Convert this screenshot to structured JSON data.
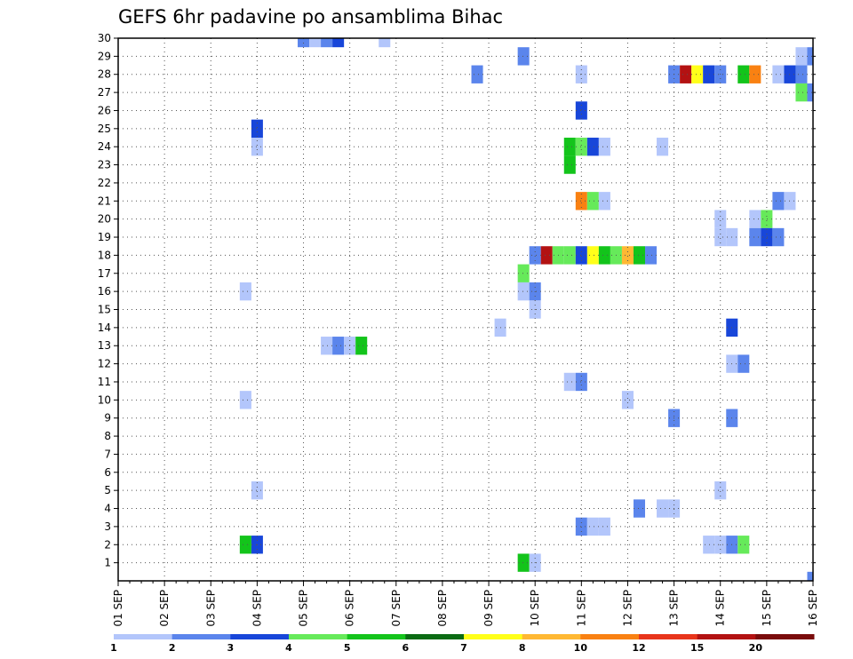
{
  "chart_data": {
    "type": "heatmap",
    "title": "GEFS 6hr padavine po ansamblima Bihac",
    "xlabel": "",
    "ylabel": "",
    "x_tick_labels": [
      "01 SEP",
      "02 SEP",
      "03 SEP",
      "04 SEP",
      "05 SEP",
      "06 SEP",
      "07 SEP",
      "08 SEP",
      "09 SEP",
      "10 SEP",
      "11 SEP",
      "12 SEP",
      "13 SEP",
      "14 SEP",
      "15 SEP",
      "16 SEP"
    ],
    "y_tick_labels": [
      "1",
      "2",
      "3",
      "4",
      "5",
      "6",
      "7",
      "8",
      "9",
      "10",
      "11",
      "12",
      "13",
      "14",
      "15",
      "16",
      "17",
      "18",
      "19",
      "20",
      "21",
      "22",
      "23",
      "24",
      "25",
      "26",
      "27",
      "28",
      "29",
      "30"
    ],
    "xlim_days": [
      1,
      16
    ],
    "ylim": [
      0,
      30
    ],
    "step_hours": 6,
    "grid": true,
    "colorbar": {
      "levels": [
        "1",
        "2",
        "3",
        "4",
        "5",
        "6",
        "7",
        "8",
        "10",
        "12",
        "15",
        "20"
      ],
      "colors": [
        "#b3c6fb",
        "#5b85ec",
        "#1846d9",
        "#66ea5a",
        "#13c41b",
        "#0a6b13",
        "#ffff19",
        "#ffb833",
        "#f98112",
        "#e8351b",
        "#b31212",
        "#7a0c0c"
      ]
    },
    "cells": [
      {
        "member": 30,
        "day": 5.0,
        "bin": 2
      },
      {
        "member": 30,
        "day": 5.25,
        "bin": 1
      },
      {
        "member": 30,
        "day": 5.5,
        "bin": 2
      },
      {
        "member": 30,
        "day": 5.75,
        "bin": 3
      },
      {
        "member": 30,
        "day": 6.75,
        "bin": 1
      },
      {
        "member": 29,
        "day": 9.75,
        "bin": 2
      },
      {
        "member": 29,
        "day": 15.75,
        "bin": 1
      },
      {
        "member": 29,
        "day": 16.0,
        "bin": 2
      },
      {
        "member": 28,
        "day": 8.75,
        "bin": 2
      },
      {
        "member": 28,
        "day": 11.0,
        "bin": 1
      },
      {
        "member": 28,
        "day": 13.0,
        "bin": 2
      },
      {
        "member": 28,
        "day": 13.25,
        "bin": 11
      },
      {
        "member": 28,
        "day": 13.5,
        "bin": 7
      },
      {
        "member": 28,
        "day": 13.75,
        "bin": 3
      },
      {
        "member": 28,
        "day": 14.0,
        "bin": 2
      },
      {
        "member": 28,
        "day": 14.5,
        "bin": 5
      },
      {
        "member": 28,
        "day": 14.75,
        "bin": 9
      },
      {
        "member": 28,
        "day": 15.25,
        "bin": 1
      },
      {
        "member": 28,
        "day": 15.5,
        "bin": 3
      },
      {
        "member": 28,
        "day": 15.75,
        "bin": 2
      },
      {
        "member": 27,
        "day": 15.75,
        "bin": 4
      },
      {
        "member": 27,
        "day": 16.0,
        "bin": 2
      },
      {
        "member": 26,
        "day": 11.0,
        "bin": 3
      },
      {
        "member": 25,
        "day": 4.0,
        "bin": 3
      },
      {
        "member": 24,
        "day": 4.0,
        "bin": 1
      },
      {
        "member": 24,
        "day": 10.75,
        "bin": 5
      },
      {
        "member": 24,
        "day": 11.0,
        "bin": 4
      },
      {
        "member": 24,
        "day": 11.25,
        "bin": 3
      },
      {
        "member": 24,
        "day": 11.5,
        "bin": 1
      },
      {
        "member": 24,
        "day": 12.75,
        "bin": 1
      },
      {
        "member": 23,
        "day": 10.75,
        "bin": 5
      },
      {
        "member": 21,
        "day": 11.0,
        "bin": 9
      },
      {
        "member": 21,
        "day": 11.25,
        "bin": 4
      },
      {
        "member": 21,
        "day": 11.5,
        "bin": 1
      },
      {
        "member": 21,
        "day": 15.25,
        "bin": 2
      },
      {
        "member": 21,
        "day": 15.5,
        "bin": 1
      },
      {
        "member": 20,
        "day": 14.0,
        "bin": 1
      },
      {
        "member": 20,
        "day": 14.75,
        "bin": 1
      },
      {
        "member": 20,
        "day": 15.0,
        "bin": 4
      },
      {
        "member": 19,
        "day": 14.0,
        "bin": 1
      },
      {
        "member": 19,
        "day": 14.25,
        "bin": 1
      },
      {
        "member": 19,
        "day": 14.75,
        "bin": 2
      },
      {
        "member": 19,
        "day": 15.0,
        "bin": 3
      },
      {
        "member": 19,
        "day": 15.25,
        "bin": 2
      },
      {
        "member": 18,
        "day": 10.0,
        "bin": 2
      },
      {
        "member": 18,
        "day": 10.25,
        "bin": 11
      },
      {
        "member": 18,
        "day": 10.5,
        "bin": 4
      },
      {
        "member": 18,
        "day": 10.75,
        "bin": 4
      },
      {
        "member": 18,
        "day": 11.0,
        "bin": 3
      },
      {
        "member": 18,
        "day": 11.25,
        "bin": 7
      },
      {
        "member": 18,
        "day": 11.5,
        "bin": 5
      },
      {
        "member": 18,
        "day": 11.75,
        "bin": 4
      },
      {
        "member": 18,
        "day": 12.0,
        "bin": 8
      },
      {
        "member": 18,
        "day": 12.25,
        "bin": 5
      },
      {
        "member": 18,
        "day": 12.5,
        "bin": 2
      },
      {
        "member": 17,
        "day": 9.75,
        "bin": 4
      },
      {
        "member": 16,
        "day": 3.75,
        "bin": 1
      },
      {
        "member": 16,
        "day": 9.75,
        "bin": 1
      },
      {
        "member": 16,
        "day": 10.0,
        "bin": 2
      },
      {
        "member": 15,
        "day": 10.0,
        "bin": 1
      },
      {
        "member": 14,
        "day": 9.25,
        "bin": 1
      },
      {
        "member": 14,
        "day": 14.25,
        "bin": 3
      },
      {
        "member": 13,
        "day": 5.5,
        "bin": 1
      },
      {
        "member": 13,
        "day": 5.75,
        "bin": 2
      },
      {
        "member": 13,
        "day": 6.0,
        "bin": 1
      },
      {
        "member": 13,
        "day": 6.25,
        "bin": 5
      },
      {
        "member": 12,
        "day": 14.25,
        "bin": 1
      },
      {
        "member": 12,
        "day": 14.5,
        "bin": 2
      },
      {
        "member": 11,
        "day": 10.75,
        "bin": 1
      },
      {
        "member": 11,
        "day": 11.0,
        "bin": 2
      },
      {
        "member": 10,
        "day": 3.75,
        "bin": 1
      },
      {
        "member": 10,
        "day": 12.0,
        "bin": 1
      },
      {
        "member": 9,
        "day": 13.0,
        "bin": 2
      },
      {
        "member": 9,
        "day": 14.25,
        "bin": 2
      },
      {
        "member": 5,
        "day": 4.0,
        "bin": 1
      },
      {
        "member": 5,
        "day": 14.0,
        "bin": 1
      },
      {
        "member": 4,
        "day": 12.25,
        "bin": 2
      },
      {
        "member": 4,
        "day": 12.75,
        "bin": 1
      },
      {
        "member": 4,
        "day": 13.0,
        "bin": 1
      },
      {
        "member": 3,
        "day": 11.0,
        "bin": 2
      },
      {
        "member": 3,
        "day": 11.25,
        "bin": 1
      },
      {
        "member": 3,
        "day": 11.5,
        "bin": 1
      },
      {
        "member": 2,
        "day": 3.75,
        "bin": 5
      },
      {
        "member": 2,
        "day": 4.0,
        "bin": 3
      },
      {
        "member": 2,
        "day": 13.75,
        "bin": 1
      },
      {
        "member": 2,
        "day": 14.0,
        "bin": 1
      },
      {
        "member": 2,
        "day": 14.25,
        "bin": 2
      },
      {
        "member": 2,
        "day": 14.5,
        "bin": 4
      },
      {
        "member": 1,
        "day": 9.75,
        "bin": 5
      },
      {
        "member": 1,
        "day": 10.0,
        "bin": 1
      },
      {
        "member": 0,
        "day": 16.0,
        "bin": 2
      }
    ]
  }
}
